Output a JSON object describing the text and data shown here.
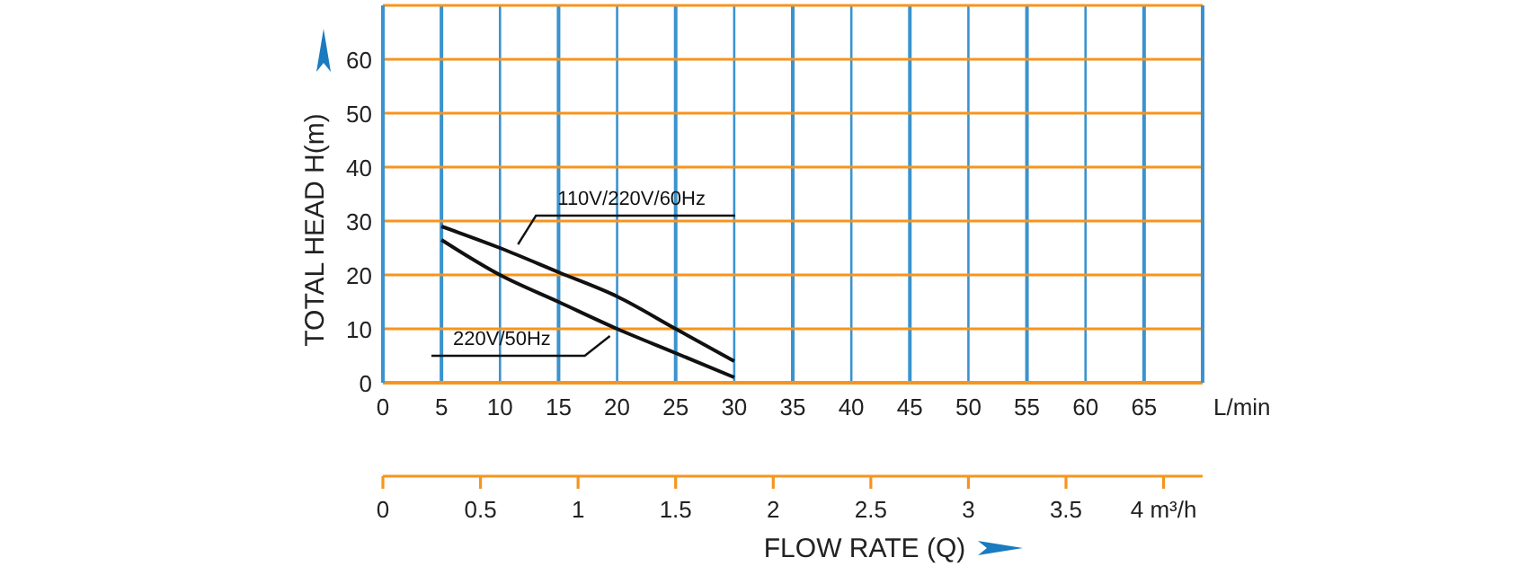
{
  "chart_data": {
    "type": "line",
    "xlabel": "FLOW RATE (Q)",
    "ylabel": "TOTAL HEAD H(m)",
    "xlim": [
      0,
      70
    ],
    "ylim": [
      0,
      70
    ],
    "xticks": [
      0,
      5,
      10,
      15,
      20,
      25,
      30,
      35,
      40,
      45,
      50,
      55,
      60,
      65
    ],
    "yticks": [
      0,
      10,
      20,
      30,
      40,
      50,
      60
    ],
    "x2lim": [
      0,
      4.2
    ],
    "x2ticks": [
      0,
      0.5,
      1,
      1.5,
      2,
      2.5,
      3,
      3.5,
      {
        "value": 4,
        "label": "4 m³/h"
      }
    ],
    "annotations": [
      "L/min"
    ],
    "grid": true,
    "line_style": "solid",
    "series": [
      {
        "name": "110V/220V/60Hz",
        "color": "#111111",
        "x": [
          5,
          10,
          15,
          20,
          25,
          30
        ],
        "values": [
          29,
          25,
          20.5,
          16,
          10,
          4
        ]
      },
      {
        "name": "220V/50Hz",
        "color": "#111111",
        "x": [
          5,
          10,
          15,
          20,
          25,
          30
        ],
        "values": [
          26.5,
          20,
          15,
          10,
          5.5,
          1
        ]
      }
    ]
  }
}
